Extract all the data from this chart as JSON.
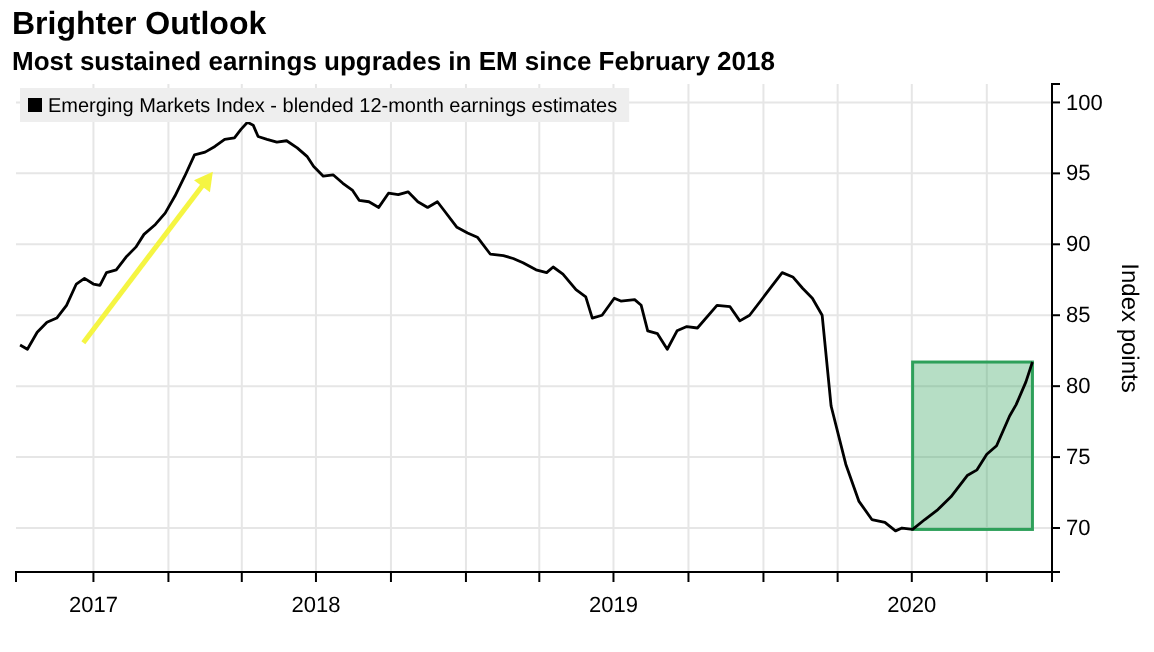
{
  "chart_data": {
    "type": "line",
    "title": "Brighter Outlook",
    "subtitle": "Most sustained earnings upgrades in EM since February 2018",
    "ylabel": "Index points",
    "x": [
      "2017-07-03",
      "2017-07-12",
      "2017-07-24",
      "2017-08-05",
      "2017-08-17",
      "2017-08-29",
      "2017-09-10",
      "2017-09-20",
      "2017-10-01",
      "2017-10-09",
      "2017-10-17",
      "2017-10-29",
      "2017-11-10",
      "2017-11-22",
      "2017-12-02",
      "2017-12-16",
      "2017-12-28",
      "2018-01-09",
      "2018-01-21",
      "2018-02-02",
      "2018-02-15",
      "2018-02-27",
      "2018-03-11",
      "2018-03-23",
      "2018-03-31",
      "2018-04-08",
      "2018-04-15",
      "2018-04-21",
      "2018-05-02",
      "2018-05-14",
      "2018-05-26",
      "2018-06-08",
      "2018-06-20",
      "2018-06-28",
      "2018-07-10",
      "2018-07-22",
      "2018-08-03",
      "2018-08-15",
      "2018-08-23",
      "2018-09-04",
      "2018-09-16",
      "2018-09-28",
      "2018-10-10",
      "2018-10-22",
      "2018-11-03",
      "2018-11-15",
      "2018-11-27",
      "2018-12-05",
      "2018-12-21",
      "2019-01-03",
      "2019-01-15",
      "2019-01-31",
      "2019-02-16",
      "2019-02-28",
      "2019-03-12",
      "2019-03-28",
      "2019-04-10",
      "2019-04-18",
      "2019-04-30",
      "2019-05-16",
      "2019-05-28",
      "2019-06-05",
      "2019-06-17",
      "2019-07-02",
      "2019-07-10",
      "2019-07-27",
      "2019-08-04",
      "2019-08-12",
      "2019-08-24",
      "2019-09-05",
      "2019-09-17",
      "2019-09-29",
      "2019-10-12",
      "2019-11-05",
      "2019-11-21",
      "2019-12-03",
      "2019-12-15",
      "2020-01-04",
      "2020-01-24",
      "2020-02-06",
      "2020-02-18",
      "2020-03-01",
      "2020-03-13",
      "2020-03-24",
      "2020-04-11",
      "2020-04-27",
      "2020-05-13",
      "2020-05-29",
      "2020-06-11",
      "2020-06-19",
      "2020-07-02",
      "2020-07-17",
      "2020-08-02",
      "2020-08-18",
      "2020-09-07",
      "2020-09-19",
      "2020-10-01",
      "2020-10-13",
      "2020-10-29",
      "2020-11-06",
      "2020-11-18",
      "2020-11-26"
    ],
    "series": [
      {
        "name": "Emerging Markets Index - blended 12-month earnings estimates",
        "color": "#000000",
        "values": [
          82.9,
          82.6,
          83.8,
          84.5,
          84.8,
          85.7,
          87.2,
          87.6,
          87.2,
          87.1,
          88.0,
          88.2,
          89.1,
          89.8,
          90.7,
          91.4,
          92.2,
          93.4,
          94.8,
          96.3,
          96.5,
          96.9,
          97.4,
          97.5,
          98.1,
          98.6,
          98.4,
          97.6,
          97.4,
          97.2,
          97.3,
          96.8,
          96.2,
          95.5,
          94.8,
          94.9,
          94.3,
          93.8,
          93.1,
          93.0,
          92.6,
          93.6,
          93.5,
          93.7,
          93.0,
          92.6,
          93.0,
          92.4,
          91.2,
          90.8,
          90.5,
          89.3,
          89.2,
          89.0,
          88.7,
          88.2,
          88.0,
          88.4,
          87.9,
          86.8,
          86.3,
          84.8,
          85.0,
          86.2,
          86.0,
          86.1,
          85.7,
          83.9,
          83.7,
          82.6,
          83.9,
          84.2,
          84.1,
          85.7,
          85.6,
          84.6,
          85.0,
          86.5,
          88.0,
          87.7,
          86.9,
          86.2,
          85.0,
          78.6,
          74.5,
          71.9,
          70.6,
          70.4,
          69.8,
          70.0,
          69.9,
          70.6,
          71.3,
          72.2,
          73.7,
          74.1,
          75.2,
          75.8,
          77.9,
          78.7,
          80.3,
          81.7
        ]
      }
    ],
    "xlim": [
      "2017-06-28",
      "2020-12-20"
    ],
    "xticks": [
      {
        "value": "2017-10-01",
        "label": "2017"
      },
      {
        "value": "2018-01-01",
        "label": null
      },
      {
        "value": "2018-04-01",
        "label": null
      },
      {
        "value": "2018-07-01",
        "label": "2018"
      },
      {
        "value": "2018-10-01",
        "label": null
      },
      {
        "value": "2019-01-01",
        "label": null
      },
      {
        "value": "2019-04-01",
        "label": null
      },
      {
        "value": "2019-07-01",
        "label": "2019"
      },
      {
        "value": "2019-10-01",
        "label": null
      },
      {
        "value": "2020-01-01",
        "label": null
      },
      {
        "value": "2020-04-01",
        "label": null
      },
      {
        "value": "2020-07-01",
        "label": "2020"
      },
      {
        "value": "2020-10-01",
        "label": null
      }
    ],
    "ylim": [
      66.9,
      101.3
    ],
    "yticks": [
      70,
      75,
      80,
      85,
      90,
      95,
      100
    ],
    "grid": true,
    "legend": "top left",
    "line_style": "solid",
    "marker": "none",
    "bands": [
      {
        "axis": "x",
        "from": "2020-07-02",
        "to": "2020-11-26",
        "label": null,
        "color": "#2ea05a"
      }
    ]
  }
}
